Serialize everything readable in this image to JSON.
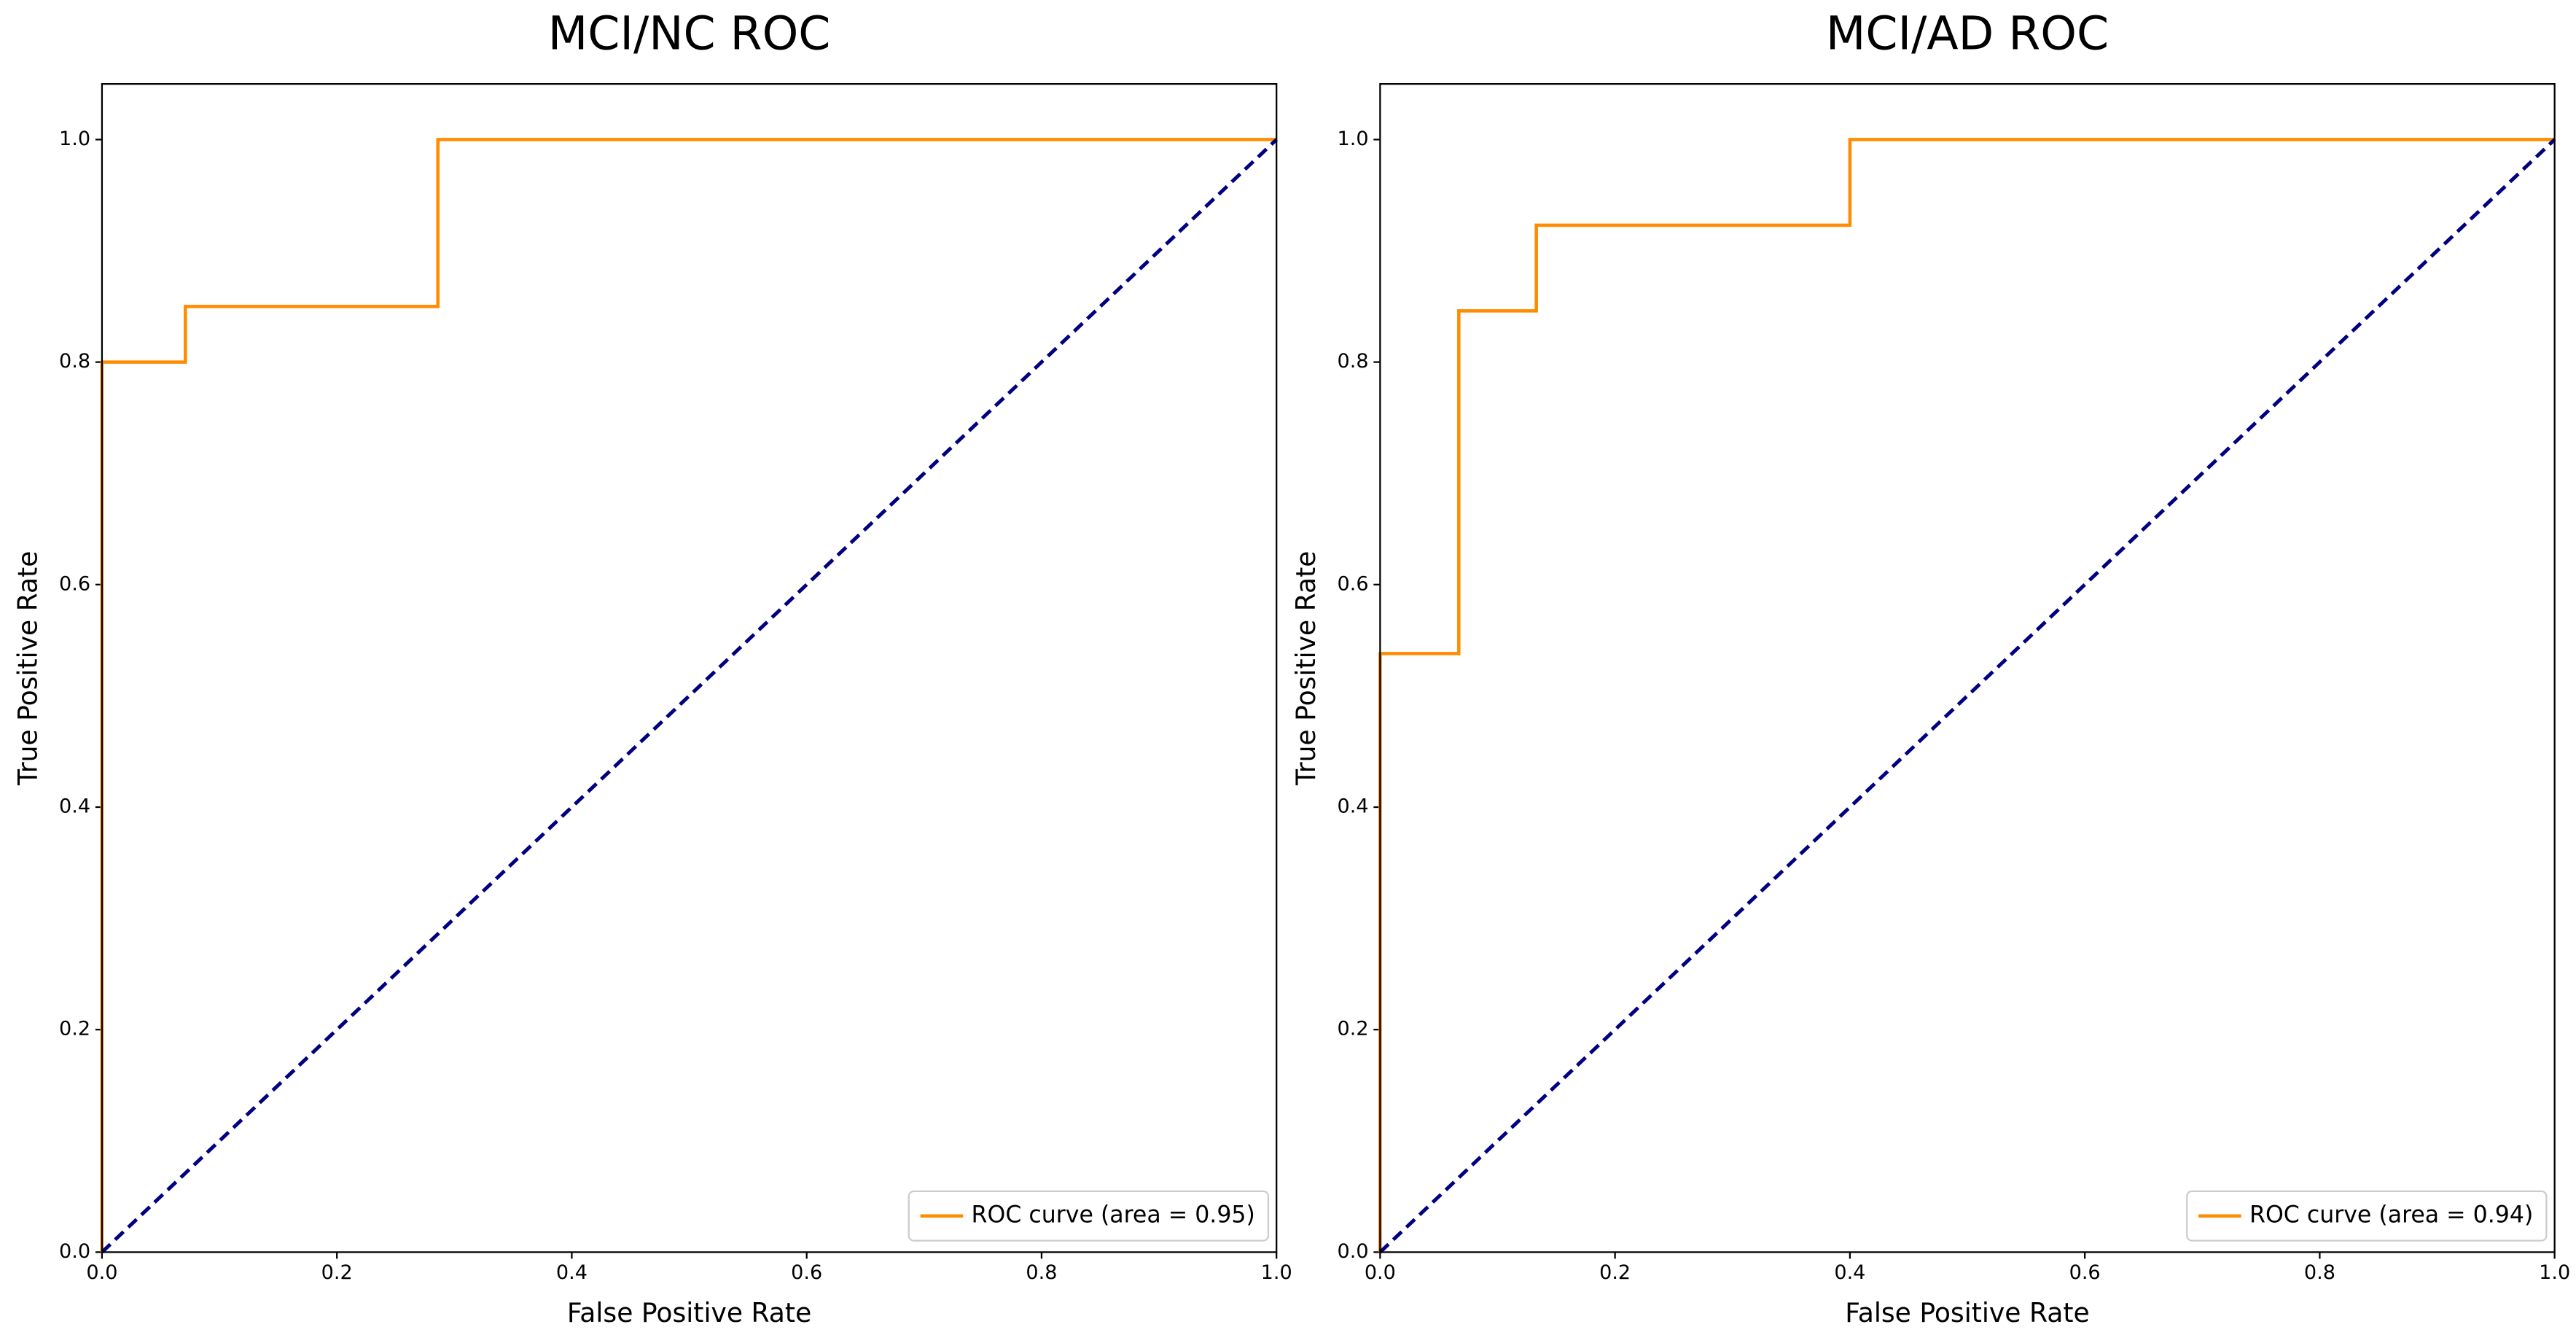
{
  "chart_data": [
    {
      "type": "line",
      "title": "MCI/NC ROC",
      "x_label": "False Positive Rate",
      "y_label": "True Positive Rate",
      "xlim": [
        0,
        1
      ],
      "ylim": [
        0,
        1.05
      ],
      "xticks": [
        {
          "value": 0,
          "label": "0.0"
        },
        0.2,
        0.4,
        0.6,
        0.8,
        {
          "value": 1,
          "label": "1.0"
        }
      ],
      "yticks": [
        {
          "value": 0,
          "label": "0.0"
        },
        0.2,
        0.4,
        0.6,
        0.8,
        {
          "value": 1,
          "label": "1.0"
        }
      ],
      "legend": "lower right",
      "series": [
        {
          "name": "ROC curve (area = 0.95)",
          "color": "#ff8c00",
          "linestyle": "solid",
          "x": [
            0,
            0,
            0.071,
            0.071,
            0.286,
            0.286,
            1
          ],
          "values": [
            0,
            0.8,
            0.8,
            0.85,
            0.85,
            1,
            1
          ]
        },
        {
          "color": "#000080",
          "linestyle": "dashed",
          "x": [
            0,
            1
          ],
          "values": [
            0,
            1
          ]
        }
      ]
    },
    {
      "type": "line",
      "title": "MCI/AD ROC",
      "x_label": "False Positive Rate",
      "y_label": "True Positive Rate",
      "xlim": [
        0,
        1
      ],
      "ylim": [
        0,
        1.05
      ],
      "xticks": [
        {
          "value": 0,
          "label": "0.0"
        },
        0.2,
        0.4,
        0.6,
        0.8,
        {
          "value": 1,
          "label": "1.0"
        }
      ],
      "yticks": [
        {
          "value": 0,
          "label": "0.0"
        },
        0.2,
        0.4,
        0.6,
        0.8,
        {
          "value": 1,
          "label": "1.0"
        }
      ],
      "legend": "lower right",
      "series": [
        {
          "name": "ROC curve (area = 0.94)",
          "color": "#ff8c00",
          "linestyle": "solid",
          "x": [
            0,
            0,
            0.067,
            0.067,
            0.133,
            0.133,
            0.4,
            0.4,
            1
          ],
          "values": [
            0,
            0.538,
            0.538,
            0.846,
            0.846,
            0.923,
            0.923,
            1,
            1
          ]
        },
        {
          "color": "#000080",
          "linestyle": "dashed",
          "x": [
            0,
            1
          ],
          "values": [
            0,
            1
          ]
        }
      ]
    }
  ]
}
